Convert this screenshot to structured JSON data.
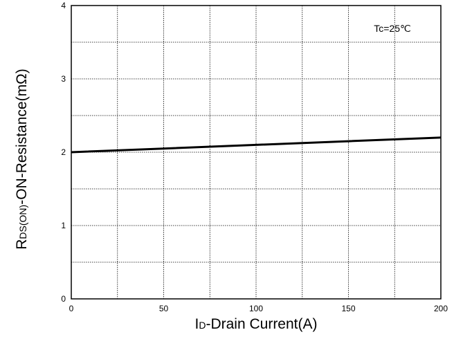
{
  "chart_data": {
    "type": "line",
    "title": "",
    "xlabel": {
      "main": "I",
      "sub": "D",
      "rest": "-Drain Current(A)"
    },
    "ylabel": {
      "main": "R",
      "sub": "DS(ON)",
      "rest": "-ON-Resistance(mΩ)"
    },
    "xlim": [
      0,
      200
    ],
    "ylim": [
      0,
      4
    ],
    "x_ticks": [
      0,
      50,
      100,
      150,
      200
    ],
    "y_ticks": [
      0,
      1,
      2,
      3,
      4
    ],
    "x_grid": [
      0,
      25,
      50,
      75,
      100,
      125,
      150,
      175,
      200
    ],
    "y_grid": [
      0,
      0.5,
      1,
      1.5,
      2,
      2.5,
      3,
      3.5,
      4
    ],
    "grid": true,
    "grid_style": "dotted",
    "annotation": "Tc=25℃",
    "annotation_position": "top-right",
    "series": [
      {
        "color": "#000000",
        "x": [
          0,
          50,
          100,
          150,
          200
        ],
        "y": [
          2.0,
          2.05,
          2.1,
          2.15,
          2.2
        ]
      }
    ]
  }
}
